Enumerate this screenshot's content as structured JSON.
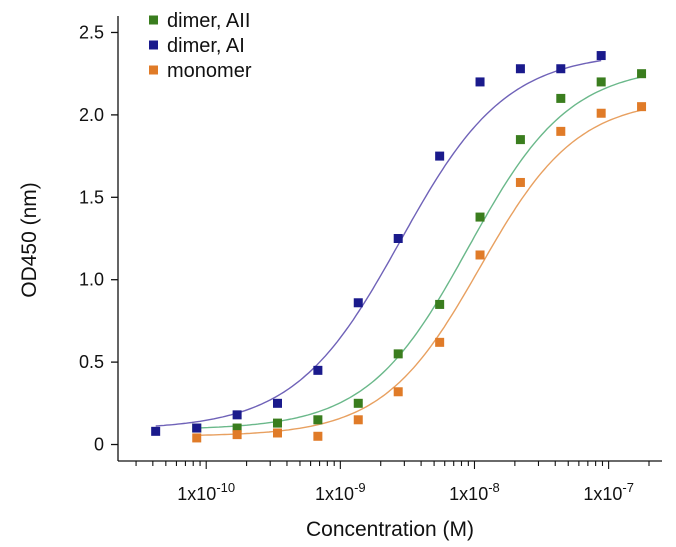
{
  "chart_data": {
    "type": "scatter",
    "title": "",
    "xlabel": "Concentration (M)",
    "ylabel": "OD450 (nm)",
    "xscale": "log",
    "xlim": [
      2.2e-11,
      2.5e-07
    ],
    "ylim": [
      -0.1,
      2.6
    ],
    "yticks": [
      0,
      0.5,
      1.0,
      1.5,
      2.0,
      2.5
    ],
    "ytick_labels": [
      "0",
      "0.5",
      "1.0",
      "1.5",
      "2.0",
      "2.5"
    ],
    "xtick_labels": [
      {
        "value": 1e-10,
        "base": "1x10",
        "exp": "-10"
      },
      {
        "value": 1e-09,
        "base": "1x10",
        "exp": "-9"
      },
      {
        "value": 1e-08,
        "base": "1x10",
        "exp": "-8"
      },
      {
        "value": 1e-07,
        "base": "1x10",
        "exp": "-7"
      }
    ],
    "grid": false,
    "legend_position": "top-left",
    "series": [
      {
        "name": "dimer, AII",
        "marker_color": "#3a7d1e",
        "line_color": "#6ab88a",
        "x": [
          8.5e-11,
          1.7e-10,
          3.4e-10,
          6.8e-10,
          1.36e-09,
          2.7e-09,
          5.5e-09,
          1.1e-08,
          2.2e-08,
          4.4e-08,
          8.8e-08,
          1.76e-07
        ],
        "y": [
          0.1,
          0.1,
          0.13,
          0.15,
          0.25,
          0.55,
          0.85,
          1.38,
          1.85,
          2.1,
          2.2,
          2.25
        ],
        "fit": {
          "bottom": 0.09,
          "top": 2.3,
          "ec50": 9e-09,
          "hill": 1.15
        }
      },
      {
        "name": "dimer, AI",
        "marker_color": "#1a1a8c",
        "line_color": "#6f62b8",
        "x": [
          4.2e-11,
          8.5e-11,
          1.7e-10,
          3.4e-10,
          6.8e-10,
          1.36e-09,
          2.7e-09,
          5.5e-09,
          1.1e-08,
          2.2e-08,
          4.4e-08,
          8.8e-08
        ],
        "y": [
          0.08,
          0.1,
          0.18,
          0.25,
          0.45,
          0.86,
          1.25,
          1.75,
          2.2,
          2.28,
          2.28,
          2.36
        ],
        "fit": {
          "bottom": 0.09,
          "top": 2.38,
          "ec50": 2.8e-09,
          "hill": 1.1
        }
      },
      {
        "name": "monomer",
        "marker_color": "#e07b28",
        "line_color": "#e8a060",
        "x": [
          8.5e-11,
          1.7e-10,
          3.4e-10,
          6.8e-10,
          1.36e-09,
          2.7e-09,
          5.5e-09,
          1.1e-08,
          2.2e-08,
          4.4e-08,
          8.8e-08,
          1.76e-07
        ],
        "y": [
          0.04,
          0.06,
          0.07,
          0.05,
          0.15,
          0.32,
          0.62,
          1.15,
          1.59,
          1.9,
          2.01,
          2.05
        ],
        "fit": {
          "bottom": 0.05,
          "top": 2.1,
          "ec50": 1.1e-08,
          "hill": 1.2
        }
      }
    ]
  }
}
